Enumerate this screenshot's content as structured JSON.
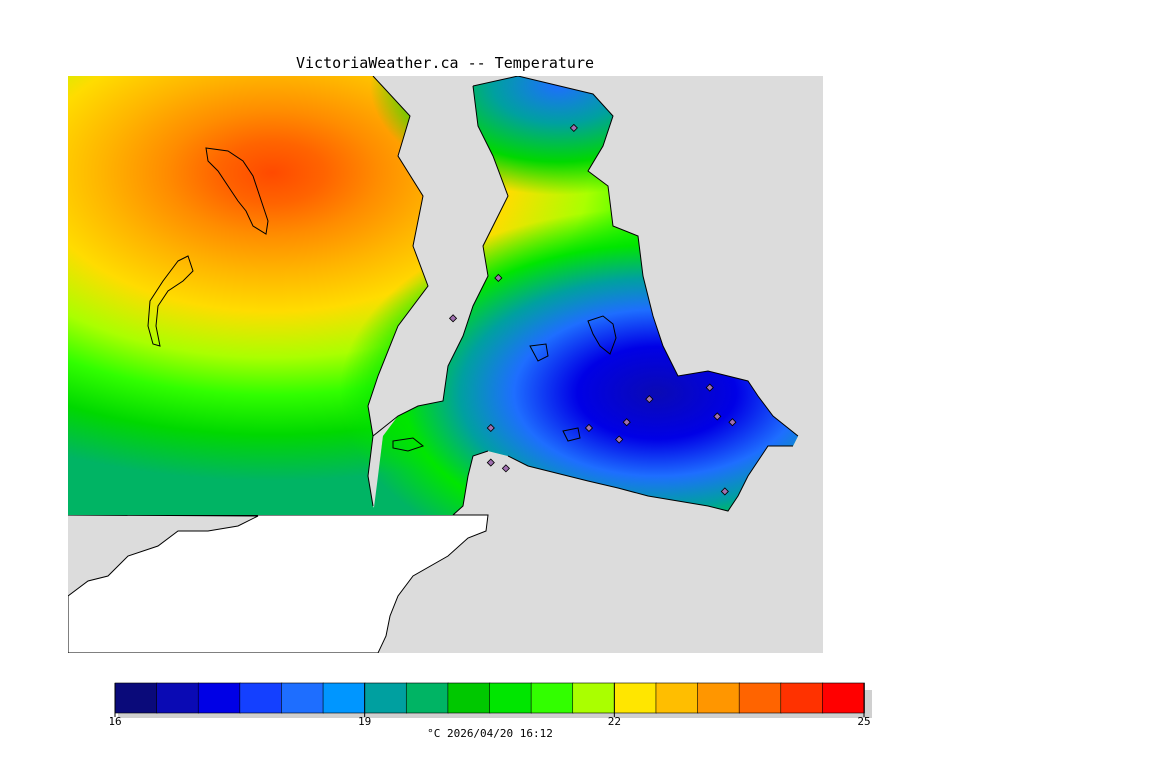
{
  "title": "VictoriaWeather.ca -- Temperature",
  "caption": "°C  2026/04/20 16:12",
  "colors": {
    "land_bg": "#dcdcdc",
    "ocean": "#ffffff",
    "coast": "#000000",
    "station_marker": "#a070b0"
  },
  "colorbar": {
    "min": 16,
    "max": 25,
    "tick_labels": [
      "16",
      "19",
      "22",
      "25"
    ],
    "tick_values": [
      16,
      19,
      22,
      25
    ],
    "bins": [
      "#0a0a7a",
      "#0a0ab4",
      "#0000e6",
      "#1440ff",
      "#1e6eff",
      "#0096ff",
      "#00a0a0",
      "#00b464",
      "#00c800",
      "#00e600",
      "#32ff00",
      "#aaff00",
      "#ffe600",
      "#ffbe00",
      "#ff9600",
      "#ff6400",
      "#ff3200",
      "#ff0000"
    ]
  },
  "stations": [
    {
      "lon": 0.67,
      "lat": 0.09
    },
    {
      "lon": 0.57,
      "lat": 0.35
    },
    {
      "lon": 0.51,
      "lat": 0.42
    },
    {
      "lon": 0.56,
      "lat": 0.61
    },
    {
      "lon": 0.56,
      "lat": 0.67
    },
    {
      "lon": 0.58,
      "lat": 0.68
    },
    {
      "lon": 0.69,
      "lat": 0.61
    },
    {
      "lon": 0.73,
      "lat": 0.63
    },
    {
      "lon": 0.74,
      "lat": 0.6
    },
    {
      "lon": 0.77,
      "lat": 0.56
    },
    {
      "lon": 0.85,
      "lat": 0.54
    },
    {
      "lon": 0.86,
      "lat": 0.59
    },
    {
      "lon": 0.88,
      "lat": 0.6
    },
    {
      "lon": 0.87,
      "lat": 0.72
    }
  ]
}
